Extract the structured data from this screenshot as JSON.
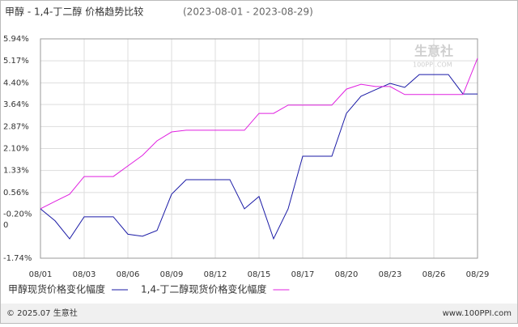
{
  "chart_data": {
    "type": "line",
    "title": "甲醇 - 1,4-丁二醇 价格趋势比较",
    "subtitle": "(2023-08-01 - 2023-08-29)",
    "categories": [
      "08/01",
      null,
      null,
      "08/03",
      null,
      null,
      "08/06",
      null,
      null,
      "08/09",
      null,
      null,
      "08/12",
      null,
      null,
      "08/15",
      null,
      null,
      "08/17",
      null,
      null,
      "08/20",
      null,
      null,
      "08/23",
      null,
      null,
      "08/26",
      null,
      null,
      "08/29"
    ],
    "series": [
      {
        "name": "甲醇现货价格变化幅度",
        "color": "#1a1aa6",
        "values": [
          -0.01,
          -0.43,
          -1.06,
          -0.29,
          -0.29,
          -0.29,
          -0.9,
          -0.97,
          -0.77,
          0.5,
          1.01,
          1.01,
          1.01,
          1.01,
          -0.01,
          0.42,
          -1.06,
          -0.01,
          1.83,
          1.83,
          1.83,
          3.33,
          3.93,
          4.16,
          4.38,
          4.24,
          4.69,
          4.69,
          4.69,
          4.01,
          4.01
        ]
      },
      {
        "name": "1,4-丁二醇现货价格变化幅度",
        "color": "#e020e0",
        "values": [
          -0.01,
          0.25,
          0.5,
          1.12,
          1.12,
          1.12,
          1.49,
          1.86,
          2.37,
          2.68,
          2.74,
          2.74,
          2.74,
          2.74,
          2.74,
          3.33,
          3.33,
          3.62,
          3.62,
          3.62,
          3.62,
          4.18,
          4.35,
          4.27,
          4.27,
          3.99,
          3.99,
          3.99,
          3.99,
          3.99,
          5.26
        ]
      }
    ],
    "ylim": [
      -1.74,
      5.94
    ],
    "yticks": [
      {
        "value": 5.94,
        "label": "5.94%"
      },
      {
        "value": 5.17,
        "label": "5.17%"
      },
      {
        "value": 4.4,
        "label": "4.40%"
      },
      {
        "value": 3.64,
        "label": "3.64%"
      },
      {
        "value": 2.87,
        "label": "2.87%"
      },
      {
        "value": 2.1,
        "label": "2.10%"
      },
      {
        "value": 1.33,
        "label": "1.33%"
      },
      {
        "value": 0.56,
        "label": "0.56%"
      },
      {
        "value": -0.2,
        "label": "-0.20%"
      },
      {
        "value": -1.74,
        "label": "-1.74%"
      }
    ],
    "y_axis_note": "0",
    "grid": true,
    "watermark": [
      "生意社",
      "100PPI.COM"
    ],
    "footer": {
      "copyright": "© 2025.07 生意社",
      "site": "www.100PPI.com"
    }
  }
}
